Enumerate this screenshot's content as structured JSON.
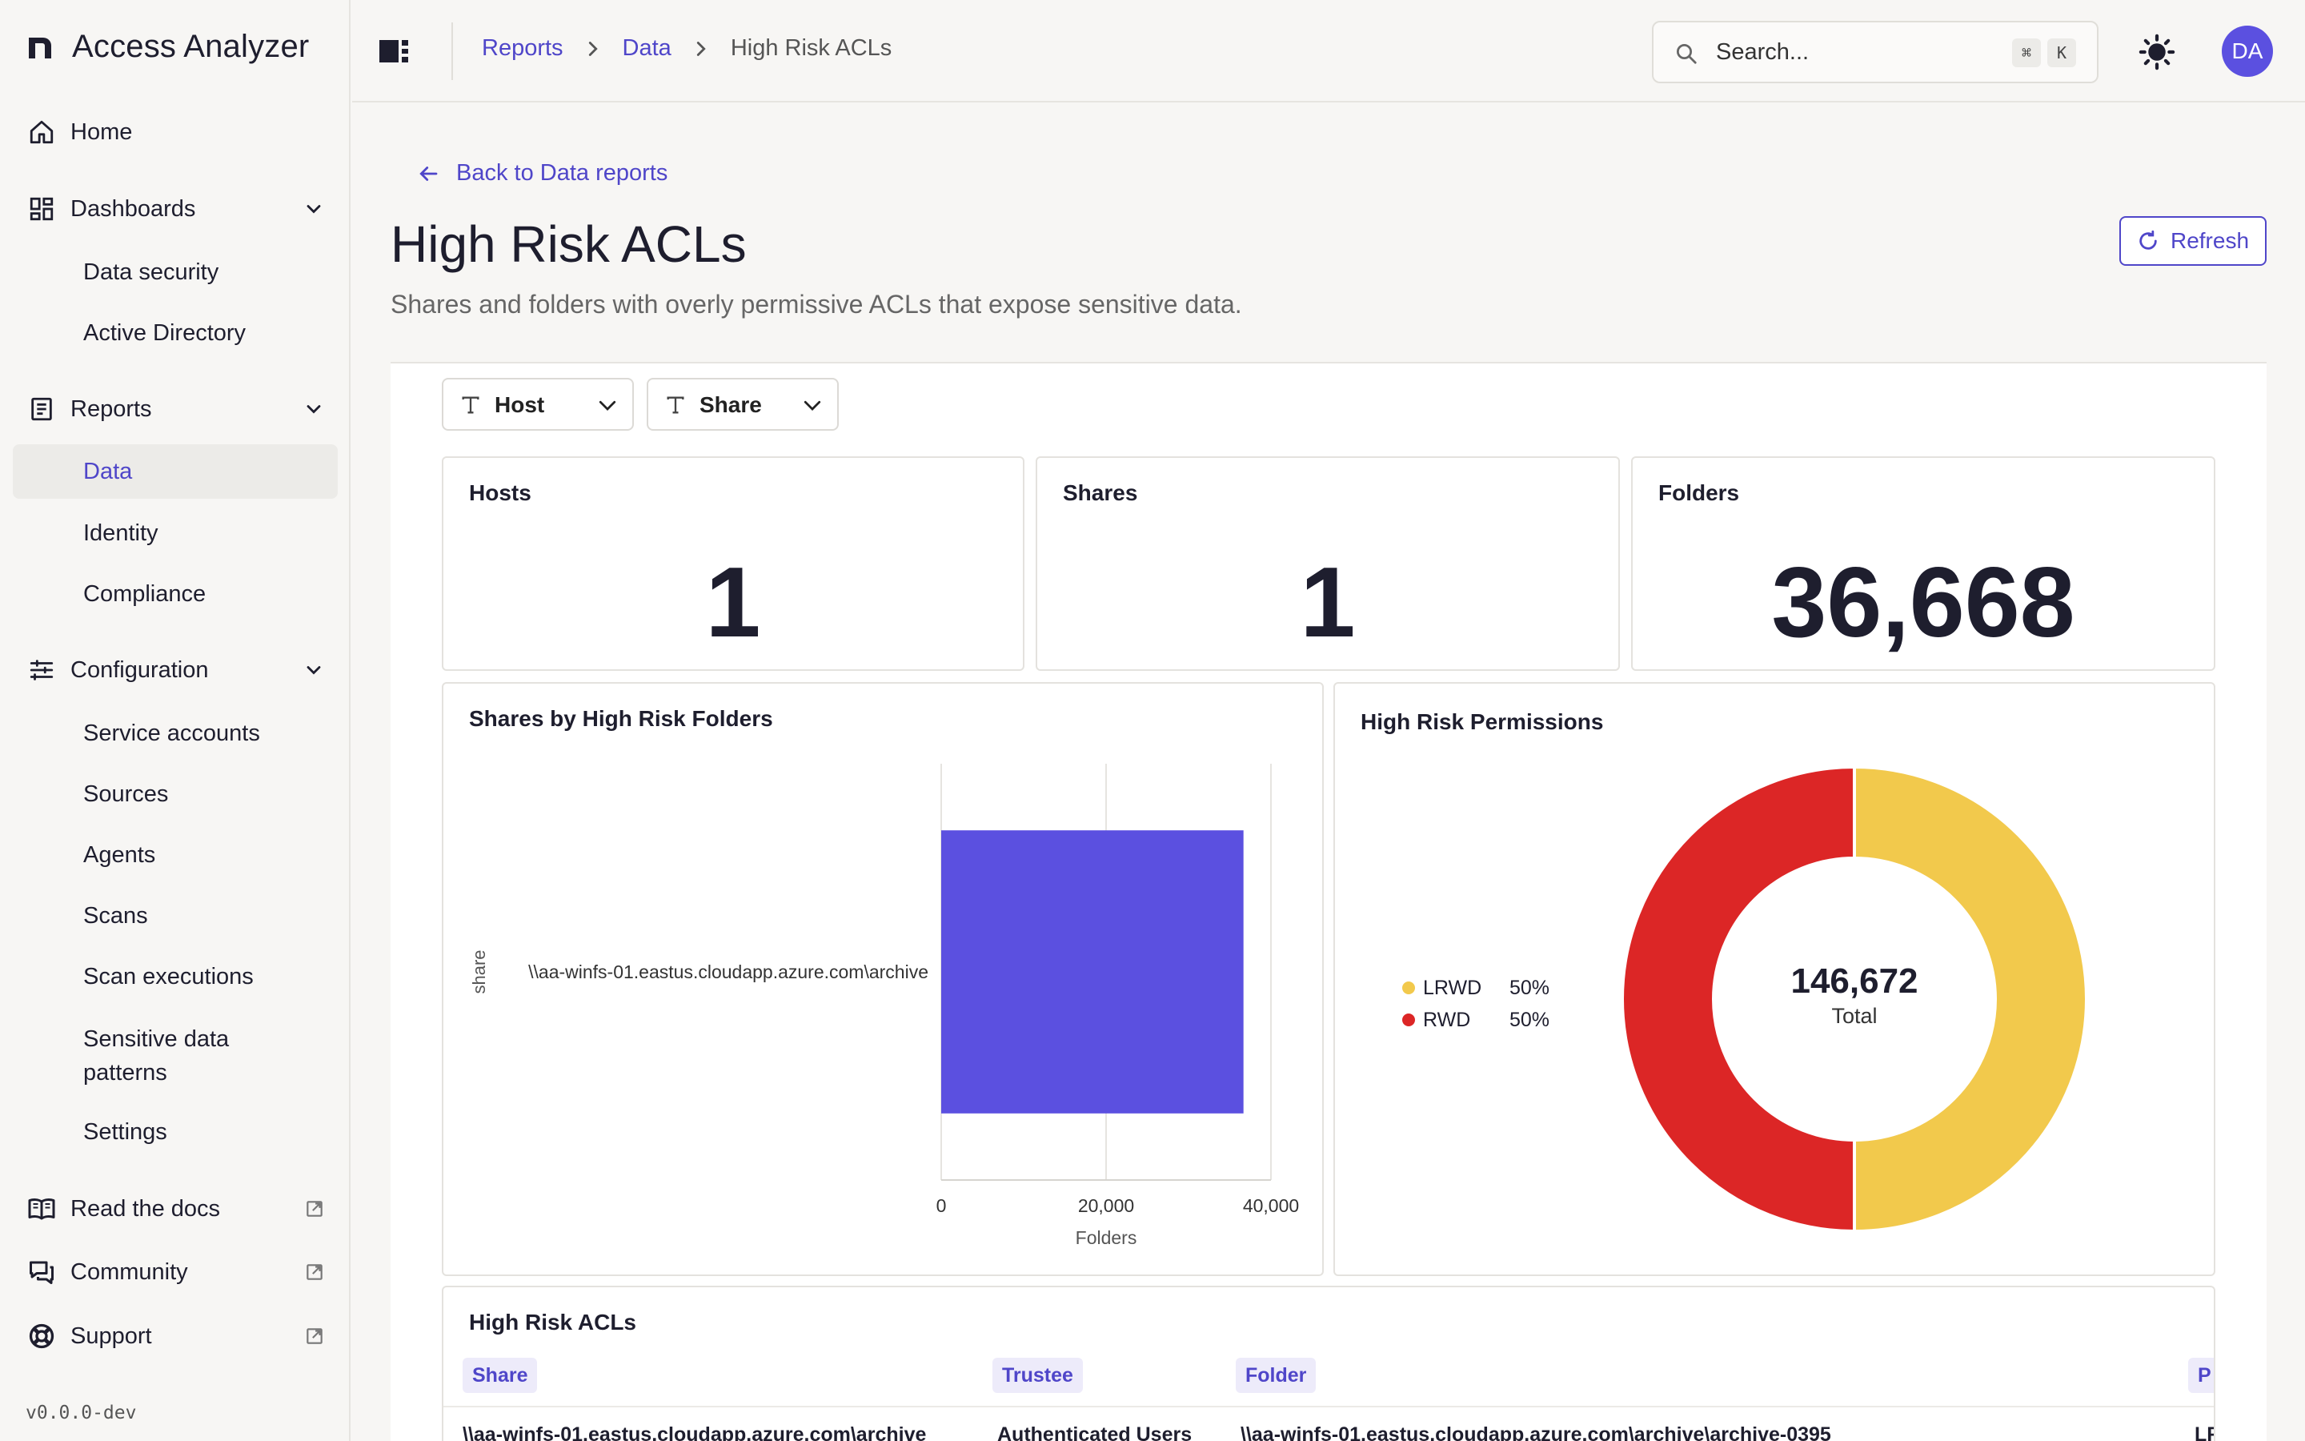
{
  "app": {
    "name": "Access Analyzer",
    "version": "v0.0.0-dev"
  },
  "sidebar": {
    "home": "Home",
    "dashboards": {
      "label": "Dashboards",
      "items": [
        "Data security",
        "Active Directory"
      ]
    },
    "reports": {
      "label": "Reports",
      "items": [
        "Data",
        "Identity",
        "Compliance"
      ],
      "active": "Data"
    },
    "configuration": {
      "label": "Configuration",
      "items": [
        "Service accounts",
        "Sources",
        "Agents",
        "Scans",
        "Scan executions",
        "Sensitive data patterns",
        "Settings"
      ]
    },
    "links": [
      "Read the docs",
      "Community",
      "Support"
    ]
  },
  "topbar": {
    "breadcrumb": [
      "Reports",
      "Data",
      "High Risk ACLs"
    ],
    "search_placeholder": "Search...",
    "shortcut": [
      "⌘",
      "K"
    ],
    "user_initials": "DA"
  },
  "page": {
    "back_label": "Back to Data reports",
    "title": "High Risk ACLs",
    "description": "Shares and folders with overly permissive ACLs that expose sensitive data.",
    "refresh_label": "Refresh"
  },
  "filters": [
    "Host",
    "Share"
  ],
  "stats": [
    {
      "label": "Hosts",
      "value": "1"
    },
    {
      "label": "Shares",
      "value": "1"
    },
    {
      "label": "Folders",
      "value": "36,668"
    }
  ],
  "chart_data": [
    {
      "type": "bar",
      "orientation": "horizontal",
      "title": "Shares by High Risk Folders",
      "categories": [
        "\\\\aa-winfs-01.eastus.cloudapp.azure.com\\archive"
      ],
      "values": [
        36668
      ],
      "xlabel": "Folders",
      "ylabel": "share",
      "xlim": [
        0,
        40000
      ],
      "xticks": [
        "0",
        "20,000",
        "40,000"
      ],
      "grid": true,
      "color": "#5b50e0"
    },
    {
      "type": "pie",
      "donut": true,
      "title": "High Risk Permissions",
      "categories": [
        "LRWD",
        "RWD"
      ],
      "values": [
        50,
        50
      ],
      "labels": [
        "50%",
        "50%"
      ],
      "colors": [
        "#f2c94c",
        "#dc2626"
      ],
      "center_value": "146,672",
      "center_label": "Total",
      "legend": "left"
    }
  ],
  "table": {
    "title": "High Risk ACLs",
    "columns": [
      "Share",
      "Trustee",
      "Folder",
      "P"
    ],
    "rows": [
      [
        "\\\\aa-winfs-01.eastus.cloudapp.azure.com\\archive",
        "Authenticated Users",
        "\\\\aa-winfs-01.eastus.cloudapp.azure.com\\archive\\archive-0395",
        "LR"
      ]
    ]
  },
  "colors": {
    "accent": "#4f46c9",
    "bar": "#5b50e0",
    "avatar": "#5b50e0"
  }
}
